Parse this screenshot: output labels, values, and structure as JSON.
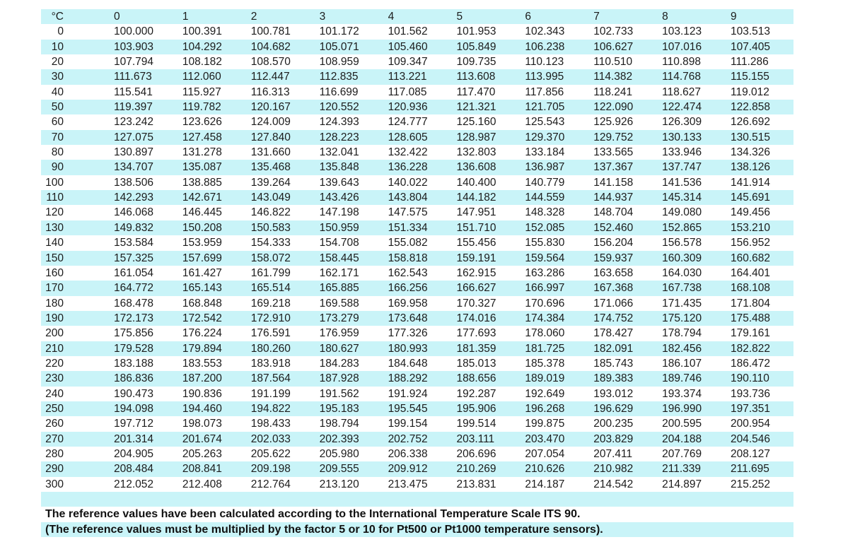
{
  "colors": {
    "stripe_cyan": "#c9f4f8"
  },
  "table": {
    "unit_header": "°C",
    "col_headers": [
      "0",
      "1",
      "2",
      "3",
      "4",
      "5",
      "6",
      "7",
      "8",
      "9"
    ],
    "rows": [
      {
        "temp": "0",
        "values": [
          "100.000",
          "100.391",
          "100.781",
          "101.172",
          "101.562",
          "101.953",
          "102.343",
          "102.733",
          "103.123",
          "103.513"
        ]
      },
      {
        "temp": "10",
        "values": [
          "103.903",
          "104.292",
          "104.682",
          "105.071",
          "105.460",
          "105.849",
          "106.238",
          "106.627",
          "107.016",
          "107.405"
        ]
      },
      {
        "temp": "20",
        "values": [
          "107.794",
          "108.182",
          "108.570",
          "108.959",
          "109.347",
          "109.735",
          "110.123",
          "110.510",
          "110.898",
          "111.286"
        ]
      },
      {
        "temp": "30",
        "values": [
          "111.673",
          "112.060",
          "112.447",
          "112.835",
          "113.221",
          "113.608",
          "113.995",
          "114.382",
          "114.768",
          "115.155"
        ]
      },
      {
        "temp": "40",
        "values": [
          "115.541",
          "115.927",
          "116.313",
          "116.699",
          "117.085",
          "117.470",
          "117.856",
          "118.241",
          "118.627",
          "119.012"
        ]
      },
      {
        "temp": "50",
        "values": [
          "119.397",
          "119.782",
          "120.167",
          "120.552",
          "120.936",
          "121.321",
          "121.705",
          "122.090",
          "122.474",
          "122.858"
        ]
      },
      {
        "temp": "60",
        "values": [
          "123.242",
          "123.626",
          "124.009",
          "124.393",
          "124.777",
          "125.160",
          "125.543",
          "125.926",
          "126.309",
          "126.692"
        ]
      },
      {
        "temp": "70",
        "values": [
          "127.075",
          "127.458",
          "127.840",
          "128.223",
          "128.605",
          "128.987",
          "129.370",
          "129.752",
          "130.133",
          "130.515"
        ]
      },
      {
        "temp": "80",
        "values": [
          "130.897",
          "131.278",
          "131.660",
          "132.041",
          "132.422",
          "132.803",
          "133.184",
          "133.565",
          "133.946",
          "134.326"
        ]
      },
      {
        "temp": "90",
        "values": [
          "134.707",
          "135.087",
          "135.468",
          "135.848",
          "136.228",
          "136.608",
          "136.987",
          "137.367",
          "137.747",
          "138.126"
        ]
      },
      {
        "temp": "100",
        "values": [
          "138.506",
          "138.885",
          "139.264",
          "139.643",
          "140.022",
          "140.400",
          "140.779",
          "141.158",
          "141.536",
          "141.914"
        ]
      },
      {
        "temp": "110",
        "values": [
          "142.293",
          "142.671",
          "143.049",
          "143.426",
          "143.804",
          "144.182",
          "144.559",
          "144.937",
          "145.314",
          "145.691"
        ]
      },
      {
        "temp": "120",
        "values": [
          "146.068",
          "146.445",
          "146.822",
          "147.198",
          "147.575",
          "147.951",
          "148.328",
          "148.704",
          "149.080",
          "149.456"
        ]
      },
      {
        "temp": "130",
        "values": [
          "149.832",
          "150.208",
          "150.583",
          "150.959",
          "151.334",
          "151.710",
          "152.085",
          "152.460",
          "152.865",
          "153.210"
        ]
      },
      {
        "temp": "140",
        "values": [
          "153.584",
          "153.959",
          "154.333",
          "154.708",
          "155.082",
          "155.456",
          "155.830",
          "156.204",
          "156.578",
          "156.952"
        ]
      },
      {
        "temp": "150",
        "values": [
          "157.325",
          "157.699",
          "158.072",
          "158.445",
          "158.818",
          "159.191",
          "159.564",
          "159.937",
          "160.309",
          "160.682"
        ]
      },
      {
        "temp": "160",
        "values": [
          "161.054",
          "161.427",
          "161.799",
          "162.171",
          "162.543",
          "162.915",
          "163.286",
          "163.658",
          "164.030",
          "164.401"
        ]
      },
      {
        "temp": "170",
        "values": [
          "164.772",
          "165.143",
          "165.514",
          "165.885",
          "166.256",
          "166.627",
          "166.997",
          "167.368",
          "167.738",
          "168.108"
        ]
      },
      {
        "temp": "180",
        "values": [
          "168.478",
          "168.848",
          "169.218",
          "169.588",
          "169.958",
          "170.327",
          "170.696",
          "171.066",
          "171.435",
          "171.804"
        ]
      },
      {
        "temp": "190",
        "values": [
          "172.173",
          "172.542",
          "172.910",
          "173.279",
          "173.648",
          "174.016",
          "174.384",
          "174.752",
          "175.120",
          "175.488"
        ]
      },
      {
        "temp": "200",
        "values": [
          "175.856",
          "176.224",
          "176.591",
          "176.959",
          "177.326",
          "177.693",
          "178.060",
          "178.427",
          "178.794",
          "179.161"
        ]
      },
      {
        "temp": "210",
        "values": [
          "179.528",
          "179.894",
          "180.260",
          "180.627",
          "180.993",
          "181.359",
          "181.725",
          "182.091",
          "182.456",
          "182.822"
        ]
      },
      {
        "temp": "220",
        "values": [
          "183.188",
          "183.553",
          "183.918",
          "184.283",
          "184.648",
          "185.013",
          "185.378",
          "185.743",
          "186.107",
          "186.472"
        ]
      },
      {
        "temp": "230",
        "values": [
          "186.836",
          "187.200",
          "187.564",
          "187.928",
          "188.292",
          "188.656",
          "189.019",
          "189.383",
          "189.746",
          "190.110"
        ]
      },
      {
        "temp": "240",
        "values": [
          "190.473",
          "190.836",
          "191.199",
          "191.562",
          "191.924",
          "192.287",
          "192.649",
          "193.012",
          "193.374",
          "193.736"
        ]
      },
      {
        "temp": "250",
        "values": [
          "194.098",
          "194.460",
          "194.822",
          "195.183",
          "195.545",
          "195.906",
          "196.268",
          "196.629",
          "196.990",
          "197.351"
        ]
      },
      {
        "temp": "260",
        "values": [
          "197.712",
          "198.073",
          "198.433",
          "198.794",
          "199.154",
          "199.514",
          "199.875",
          "200.235",
          "200.595",
          "200.954"
        ]
      },
      {
        "temp": "270",
        "values": [
          "201.314",
          "201.674",
          "202.033",
          "202.393",
          "202.752",
          "203.111",
          "203.470",
          "203.829",
          "204.188",
          "204.546"
        ]
      },
      {
        "temp": "280",
        "values": [
          "204.905",
          "205.263",
          "205.622",
          "205.980",
          "206.338",
          "206.696",
          "207.054",
          "207.411",
          "207.769",
          "208.127"
        ]
      },
      {
        "temp": "290",
        "values": [
          "208.484",
          "208.841",
          "209.198",
          "209.555",
          "209.912",
          "210.269",
          "210.626",
          "210.982",
          "211.339",
          "211.695"
        ]
      },
      {
        "temp": "300",
        "values": [
          "212.052",
          "212.408",
          "212.764",
          "213.120",
          "213.475",
          "213.831",
          "214.187",
          "214.542",
          "214.897",
          "215.252"
        ]
      }
    ]
  },
  "footer": {
    "line1": "The reference values have been calculated according to the International Temperature Scale ITS 90.",
    "line2": "(The reference values must be multiplied by the factor 5 or 10 for Pt500 or Pt1000 temperature sensors)."
  }
}
